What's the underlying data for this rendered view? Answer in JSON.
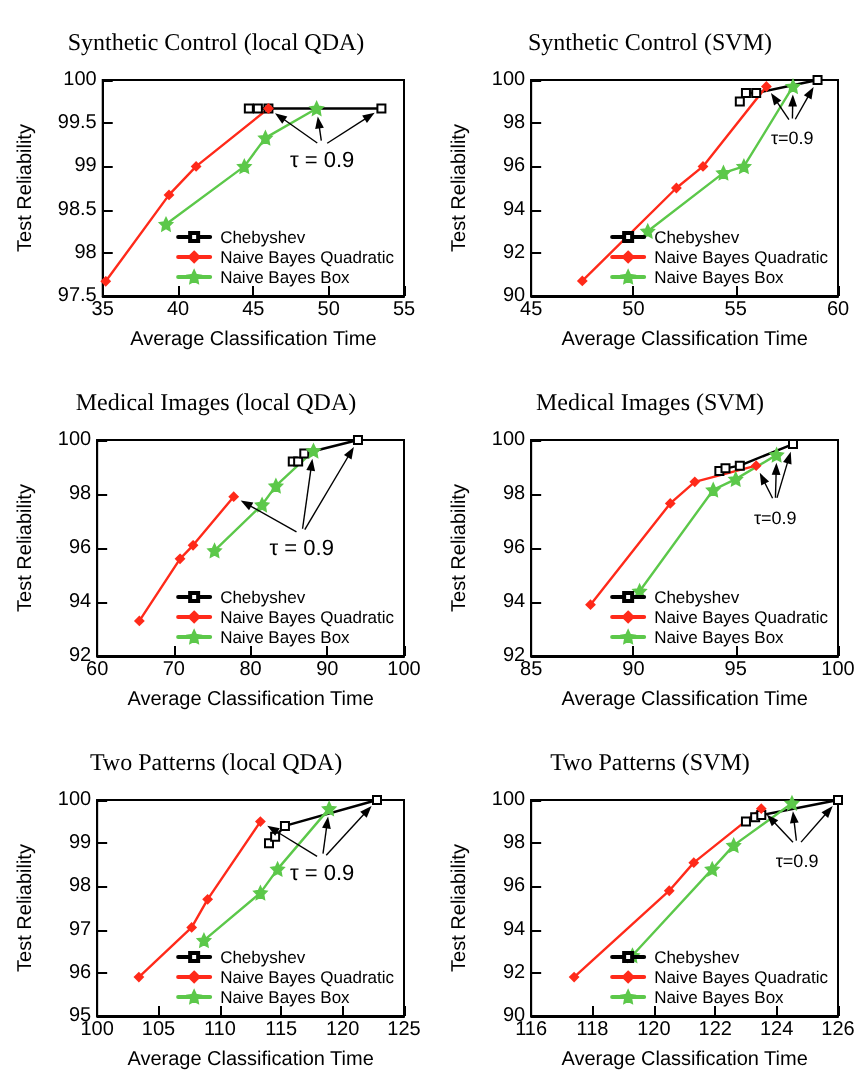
{
  "chart_data": [
    {
      "type": "line",
      "title": "Synthetic Control (local QDA)",
      "xlabel": "Average Classification Time",
      "ylabel": "Test Reliability",
      "xlim": [
        35,
        55
      ],
      "xticks": [
        35,
        40,
        45,
        50,
        55
      ],
      "ylim": [
        97.5,
        100
      ],
      "yticks": [
        97.5,
        98,
        98.5,
        99,
        99.5,
        100
      ],
      "legend": "bottom right",
      "grid": false,
      "series": [
        {
          "name": "Chebyshev",
          "color": "#000000",
          "marker": "square",
          "x": [
            44.7,
            45.3,
            46,
            53.5
          ],
          "values": [
            99.67,
            99.67,
            99.67,
            99.67
          ]
        },
        {
          "name": "Naive Bayes Quadratic",
          "color": "#ff2a1a",
          "marker": "diamond",
          "x": [
            35.2,
            39.4,
            41.2,
            46
          ],
          "values": [
            97.67,
            98.67,
            99.0,
            99.67
          ]
        },
        {
          "name": "Naive Bayes Box",
          "color": "#5cc84a",
          "marker": "star",
          "x": [
            39.2,
            44.4,
            45.8,
            49.2
          ],
          "values": [
            98.33,
            99.0,
            99.33,
            99.67
          ]
        }
      ],
      "annotations": [
        "τ = 0.9"
      ]
    },
    {
      "type": "line",
      "title": "Synthetic Control (SVM)",
      "xlabel": "Average Classification Time",
      "ylabel": "Test Reliability",
      "xlim": [
        45,
        60
      ],
      "xticks": [
        45,
        50,
        55,
        60
      ],
      "ylim": [
        90,
        100
      ],
      "yticks": [
        90,
        92,
        94,
        96,
        98,
        100
      ],
      "legend": "bottom right",
      "grid": false,
      "series": [
        {
          "name": "Chebyshev",
          "color": "#000000",
          "marker": "square",
          "x": [
            55.2,
            55.5,
            56,
            59
          ],
          "values": [
            99.0,
            99.4,
            99.4,
            100
          ]
        },
        {
          "name": "Naive Bayes Quadratic",
          "color": "#ff2a1a",
          "marker": "diamond",
          "x": [
            47.5,
            52.1,
            53.4,
            56.5
          ],
          "values": [
            90.7,
            95.0,
            96.0,
            99.7
          ]
        },
        {
          "name": "Naive Bayes Box",
          "color": "#5cc84a",
          "marker": "star",
          "x": [
            50.7,
            54.4,
            55.4,
            57.8
          ],
          "values": [
            93.0,
            95.7,
            96.0,
            99.7
          ]
        }
      ],
      "annotations": [
        "τ=0.9"
      ]
    },
    {
      "type": "line",
      "title": "Medical Images (local QDA)",
      "xlabel": "Average Classification Time",
      "ylabel": "Test Reliability",
      "xlim": [
        60,
        100
      ],
      "xticks": [
        60,
        70,
        80,
        90,
        100
      ],
      "ylim": [
        92,
        100
      ],
      "yticks": [
        92,
        94,
        96,
        98,
        100
      ],
      "legend": "bottom right",
      "grid": false,
      "series": [
        {
          "name": "Chebyshev",
          "color": "#000000",
          "marker": "square",
          "x": [
            85.5,
            86.2,
            87,
            94
          ],
          "values": [
            99.2,
            99.2,
            99.5,
            100
          ]
        },
        {
          "name": "Naive Bayes Quadratic",
          "color": "#ff2a1a",
          "marker": "diamond",
          "x": [
            65.5,
            70.8,
            72.5,
            77.8
          ],
          "values": [
            93.3,
            95.6,
            96.1,
            97.9
          ]
        },
        {
          "name": "Naive Bayes Box",
          "color": "#5cc84a",
          "marker": "star",
          "x": [
            75.3,
            81.5,
            83.3,
            88.2
          ],
          "values": [
            95.9,
            97.6,
            98.3,
            99.6
          ]
        }
      ],
      "annotations": [
        "τ = 0.9"
      ]
    },
    {
      "type": "line",
      "title": "Medical Images (SVM)",
      "xlabel": "Average Classification Time",
      "ylabel": "Test Reliability",
      "xlim": [
        85,
        100
      ],
      "xticks": [
        85,
        90,
        95,
        100
      ],
      "ylim": [
        92,
        100
      ],
      "yticks": [
        92,
        94,
        96,
        98,
        100
      ],
      "legend": "bottom right",
      "grid": false,
      "series": [
        {
          "name": "Chebyshev",
          "color": "#000000",
          "marker": "square",
          "x": [
            94.2,
            94.5,
            95.2,
            97.8
          ],
          "values": [
            98.85,
            98.95,
            99.05,
            99.85
          ]
        },
        {
          "name": "Naive Bayes Quadratic",
          "color": "#ff2a1a",
          "marker": "diamond",
          "x": [
            87.9,
            91.8,
            93,
            96
          ],
          "values": [
            93.9,
            97.65,
            98.45,
            99.05
          ]
        },
        {
          "name": "Naive Bayes Box",
          "color": "#5cc84a",
          "marker": "star",
          "x": [
            90.3,
            93.9,
            95,
            97
          ],
          "values": [
            94.4,
            98.15,
            98.55,
            99.45
          ]
        }
      ],
      "annotations": [
        "τ=0.9"
      ]
    },
    {
      "type": "line",
      "title": "Two Patterns (local QDA)",
      "xlabel": "Average Classification Time",
      "ylabel": "Test Reliability",
      "xlim": [
        100,
        125
      ],
      "xticks": [
        100,
        105,
        110,
        115,
        120,
        125
      ],
      "ylim": [
        95,
        100
      ],
      "yticks": [
        95,
        96,
        97,
        98,
        99,
        100
      ],
      "legend": "bottom right",
      "grid": false,
      "series": [
        {
          "name": "Chebyshev",
          "color": "#000000",
          "marker": "square",
          "x": [
            114,
            114.5,
            115.3,
            122.8
          ],
          "values": [
            99.0,
            99.15,
            99.4,
            100
          ]
        },
        {
          "name": "Naive Bayes Quadratic",
          "color": "#ff2a1a",
          "marker": "diamond",
          "x": [
            103.4,
            107.7,
            109,
            113.3
          ],
          "values": [
            95.9,
            97.05,
            97.7,
            99.5
          ]
        },
        {
          "name": "Naive Bayes Box",
          "color": "#5cc84a",
          "marker": "star",
          "x": [
            108.7,
            113.3,
            114.7,
            118.9
          ],
          "values": [
            96.75,
            97.85,
            98.4,
            99.8
          ]
        }
      ],
      "annotations": [
        "τ = 0.9"
      ]
    },
    {
      "type": "line",
      "title": "Two Patterns (SVM)",
      "xlabel": "Average Classification Time",
      "ylabel": "Test Reliability",
      "xlim": [
        116,
        126
      ],
      "xticks": [
        116,
        118,
        120,
        122,
        124,
        126
      ],
      "ylim": [
        90,
        100
      ],
      "yticks": [
        90,
        92,
        94,
        96,
        98,
        100
      ],
      "legend": "bottom right",
      "grid": false,
      "series": [
        {
          "name": "Chebyshev",
          "color": "#000000",
          "marker": "square",
          "x": [
            123,
            123.3,
            123.5,
            126
          ],
          "values": [
            99.0,
            99.2,
            99.3,
            100
          ]
        },
        {
          "name": "Naive Bayes Quadratic",
          "color": "#ff2a1a",
          "marker": "diamond",
          "x": [
            117.4,
            120.5,
            121.3,
            123.5
          ],
          "values": [
            91.8,
            95.8,
            97.1,
            99.6
          ]
        },
        {
          "name": "Naive Bayes Box",
          "color": "#5cc84a",
          "marker": "star",
          "x": [
            119.3,
            121.9,
            122.6,
            124.5
          ],
          "values": [
            92.8,
            96.8,
            97.9,
            99.85
          ]
        }
      ],
      "annotations": [
        "τ=0.9"
      ]
    }
  ]
}
